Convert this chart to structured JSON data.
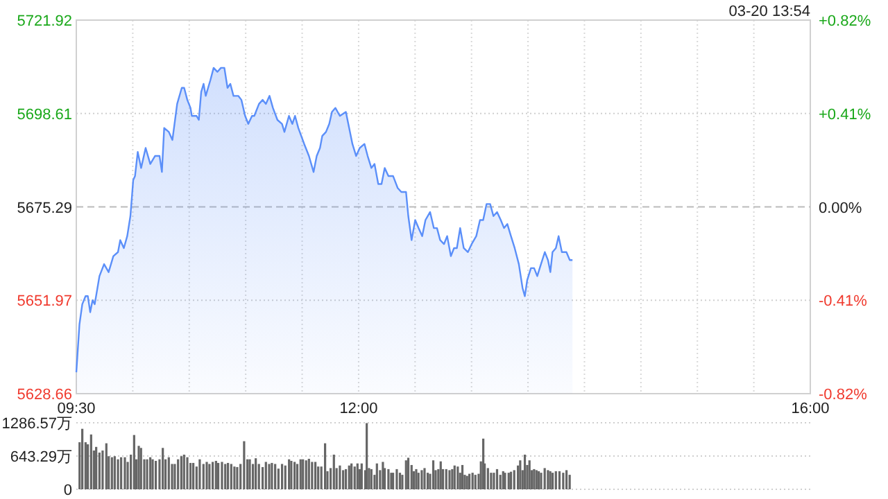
{
  "chart_data": [
    {
      "type": "area",
      "subtitle": "03-20 13:54",
      "x": [
        9.5,
        9.528,
        9.553,
        9.582,
        9.602,
        9.623,
        9.644,
        9.663,
        9.705,
        9.746,
        9.786,
        9.828,
        9.869,
        9.889,
        9.921,
        9.951,
        9.979,
        10.004,
        10.02,
        10.044,
        10.074,
        10.114,
        10.155,
        10.197,
        10.237,
        10.258,
        10.278,
        10.319,
        10.351,
        10.393,
        10.434,
        10.455,
        10.483,
        10.511,
        10.523,
        10.565,
        10.585,
        10.606,
        10.627,
        10.646,
        10.688,
        10.716,
        10.749,
        10.781,
        10.811,
        10.839,
        10.864,
        10.892,
        10.934,
        10.962,
        10.995,
        11.023,
        11.056,
        11.076,
        11.118,
        11.15,
        11.179,
        11.211,
        11.241,
        11.281,
        11.322,
        11.343,
        11.383,
        11.413,
        11.437,
        11.466,
        11.518,
        11.56,
        11.601,
        11.629,
        11.658,
        11.678,
        11.711,
        11.74,
        11.764,
        11.794,
        11.834,
        11.887,
        11.916,
        11.945,
        11.978,
        12.01,
        12.052,
        12.08,
        12.113,
        12.141,
        12.174,
        12.203,
        12.231,
        12.264,
        12.305,
        12.346,
        12.378,
        12.42,
        12.44,
        12.469,
        12.501,
        12.531,
        12.563,
        12.592,
        12.633,
        12.666,
        12.694,
        12.722,
        12.756,
        12.784,
        12.817,
        12.845,
        12.87,
        12.899,
        12.931,
        12.968,
        13.001,
        13.042,
        13.075,
        13.103,
        13.133,
        13.165,
        13.194,
        13.226,
        13.259,
        13.288,
        13.317,
        13.349,
        13.382,
        13.419,
        13.452,
        13.472,
        13.493,
        13.526,
        13.554,
        13.582,
        13.615,
        13.649,
        13.677,
        13.698,
        13.717,
        13.747,
        13.771,
        13.8,
        13.84,
        13.87,
        13.894
      ],
      "series": [
        {
          "color": "#5b8ff9",
          "values": [
            5634,
            5646,
            5651,
            5653,
            5653,
            5649,
            5652,
            5651,
            5658,
            5661,
            5659,
            5663,
            5664,
            5667,
            5665,
            5668,
            5673,
            5682,
            5683,
            5689,
            5685,
            5690,
            5686,
            5688,
            5688,
            5684,
            5695,
            5694,
            5692,
            5701,
            5705,
            5705,
            5702,
            5700,
            5698,
            5698,
            5697,
            5704,
            5706,
            5703,
            5707,
            5710,
            5709,
            5710,
            5710,
            5705,
            5706,
            5703,
            5703,
            5702,
            5698,
            5696,
            5698,
            5698,
            5701,
            5702,
            5701,
            5703,
            5700,
            5697,
            5696,
            5694,
            5698,
            5696,
            5698,
            5695,
            5691,
            5688,
            5684,
            5688,
            5690,
            5693,
            5694,
            5696,
            5699,
            5700,
            5698,
            5699,
            5695,
            5691,
            5688,
            5690,
            5691,
            5688,
            5685,
            5686,
            5681,
            5681,
            5685,
            5683,
            5683,
            5680,
            5679,
            5679,
            5673,
            5667,
            5672,
            5670,
            5668,
            5672,
            5674,
            5670,
            5670,
            5667,
            5666,
            5668,
            5663,
            5665,
            5665,
            5670,
            5665,
            5664,
            5666,
            5668,
            5672,
            5672,
            5676,
            5676,
            5673,
            5674,
            5672,
            5670,
            5671,
            5668,
            5665,
            5661,
            5655,
            5653,
            5657,
            5660,
            5660,
            5658,
            5661,
            5664,
            5662,
            5659,
            5664,
            5665,
            5668,
            5664,
            5664,
            5662,
            5662
          ]
        }
      ],
      "xlim": [
        9.5,
        16
      ],
      "xticks": [
        {
          "value": 9.5,
          "label": "09:30"
        },
        {
          "value": 10,
          "label": null
        },
        {
          "value": 10.5,
          "label": null
        },
        {
          "value": 11,
          "label": null
        },
        {
          "value": 11.5,
          "label": null
        },
        {
          "value": 12,
          "label": "12:00"
        },
        {
          "value": 12.5,
          "label": null
        },
        {
          "value": 13,
          "label": null
        },
        {
          "value": 13.5,
          "label": null
        },
        {
          "value": 14,
          "label": null
        },
        {
          "value": 14.5,
          "label": null
        },
        {
          "value": 15,
          "label": null
        },
        {
          "value": 15.5,
          "label": null
        },
        {
          "value": 16,
          "label": "16:00"
        }
      ],
      "ylim": [
        5628.66,
        5721.92
      ],
      "yticks": [
        5628.66,
        5651.97,
        5675.29,
        5698.61,
        5721.92
      ],
      "y2lim": [
        -0.82,
        0.82
      ],
      "y2ticks": [
        {
          "value": -0.82,
          "label": "-0.82%"
        },
        {
          "value": -0.41,
          "label": "-0.41%"
        },
        {
          "value": 0,
          "label": "0.00%"
        },
        {
          "value": 0.41,
          "label": "+0.41%"
        },
        {
          "value": 0.82,
          "label": "+0.82%"
        }
      ],
      "ref_lines": [
        {
          "axis": "y",
          "value": 5675.29,
          "line_style": "dashed",
          "color": "#bbbbbb"
        }
      ],
      "grid": true
    },
    {
      "type": "bar",
      "color": "#666666",
      "tick_labels": "y",
      "grid": "y",
      "x": [
        9.529,
        9.553,
        9.582,
        9.602,
        9.631,
        9.656,
        9.676,
        9.705,
        9.733,
        9.766,
        9.787,
        9.815,
        9.84,
        9.869,
        9.897,
        9.93,
        9.955,
        9.983,
        10.012,
        10.032,
        10.053,
        10.073,
        10.102,
        10.127,
        10.155,
        10.176,
        10.204,
        10.237,
        10.266,
        10.29,
        10.319,
        10.348,
        10.372,
        10.401,
        10.43,
        10.454,
        10.483,
        10.511,
        10.536,
        10.565,
        10.593,
        10.626,
        10.655,
        10.679,
        10.708,
        10.737,
        10.757,
        10.79,
        10.819,
        10.843,
        10.872,
        10.9,
        10.925,
        10.954,
        10.986,
        11.015,
        11.036,
        11.064,
        11.089,
        11.117,
        11.15,
        11.179,
        11.208,
        11.232,
        11.261,
        11.29,
        11.322,
        11.351,
        11.384,
        11.404,
        11.433,
        11.457,
        11.486,
        11.507,
        11.535,
        11.56,
        11.588,
        11.617,
        11.642,
        11.67,
        11.703,
        11.724,
        11.752,
        11.781,
        11.805,
        11.834,
        11.863,
        11.887,
        11.916,
        11.937,
        11.965,
        11.99,
        12.01,
        12.027,
        12.059,
        12.072,
        12.092,
        12.113,
        12.141,
        12.162,
        12.19,
        12.215,
        12.231,
        12.264,
        12.289,
        12.305,
        12.338,
        12.366,
        12.387,
        12.42,
        12.44,
        12.469,
        12.489,
        12.51,
        12.53,
        12.559,
        12.584,
        12.612,
        12.633,
        12.661,
        12.682,
        12.706,
        12.727,
        12.747,
        12.776,
        12.805,
        12.829,
        12.85,
        12.878,
        12.899,
        12.919,
        12.94,
        12.96,
        12.981,
        13.009,
        13.034,
        13.063,
        13.083,
        13.104,
        13.116,
        13.145,
        13.173,
        13.198,
        13.226,
        13.255,
        13.28,
        13.296,
        13.329,
        13.349,
        13.378,
        13.411,
        13.431,
        13.452,
        13.472,
        13.493,
        13.513,
        13.534,
        13.554,
        13.575,
        13.595,
        13.616,
        13.648,
        13.677,
        13.697,
        13.718,
        13.747,
        13.779,
        13.812,
        13.841,
        13.869
      ],
      "values": [
        910,
        1170,
        910,
        870,
        1060,
        750,
        820,
        710,
        750,
        890,
        640,
        620,
        640,
        580,
        620,
        620,
        530,
        670,
        1050,
        580,
        840,
        800,
        580,
        580,
        620,
        580,
        550,
        580,
        800,
        580,
        620,
        490,
        490,
        580,
        640,
        670,
        620,
        510,
        510,
        440,
        580,
        490,
        530,
        490,
        530,
        550,
        510,
        530,
        490,
        510,
        490,
        440,
        430,
        490,
        930,
        580,
        580,
        490,
        600,
        490,
        430,
        530,
        490,
        510,
        490,
        400,
        490,
        460,
        580,
        550,
        530,
        490,
        580,
        580,
        560,
        590,
        530,
        530,
        440,
        440,
        890,
        350,
        410,
        670,
        410,
        460,
        370,
        390,
        460,
        500,
        440,
        500,
        390,
        500,
        370,
        1280,
        410,
        390,
        280,
        500,
        370,
        530,
        410,
        390,
        320,
        320,
        390,
        320,
        280,
        560,
        610,
        470,
        350,
        390,
        320,
        370,
        410,
        320,
        300,
        560,
        370,
        390,
        540,
        390,
        390,
        370,
        390,
        460,
        440,
        320,
        470,
        280,
        260,
        300,
        320,
        280,
        300,
        540,
        980,
        500,
        410,
        320,
        320,
        390,
        280,
        350,
        320,
        320,
        340,
        370,
        460,
        560,
        370,
        670,
        470,
        560,
        370,
        390,
        370,
        350,
        320,
        410,
        370,
        350,
        320,
        350,
        350,
        320,
        370,
        280
      ],
      "xlim": [
        9.5,
        16
      ],
      "ylim": [
        0,
        1286.57
      ],
      "yticks": [
        0,
        {
          "value": 643.29,
          "label": "643.29万"
        },
        {
          "value": 1286.57,
          "label": "1286.57万"
        }
      ]
    }
  ]
}
